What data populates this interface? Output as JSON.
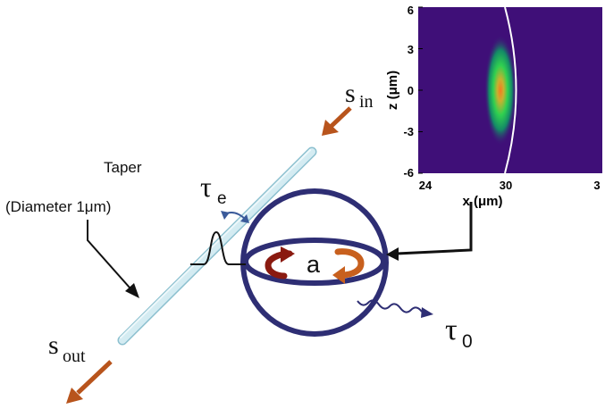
{
  "labels": {
    "s_in": {
      "main": "s",
      "sub": "in"
    },
    "s_out": {
      "main": "s",
      "sub": "out"
    },
    "tau_e": {
      "main": "τ",
      "sub": "e"
    },
    "tau_0": {
      "main": "τ",
      "sub": "0"
    },
    "mode": "a",
    "taper_line1": "Taper",
    "taper_line2": "(Diameter 1μm)"
  },
  "inset": {
    "z_label": "z (μm)",
    "x_label": "x (μm)",
    "z_ticks": [
      "6",
      "3",
      "0",
      "-3",
      "-6"
    ],
    "x_ticks": [
      "24",
      "30",
      "3"
    ]
  },
  "colors": {
    "sphere": "#2e2e74",
    "arrow_input": "#b8541c",
    "circulation_left": "#8a1a10",
    "circulation_right": "#c8601e",
    "taper_fill": "#d4ecf3",
    "taper_stroke": "#7fb8c8",
    "field_background": "#3f0f78"
  }
}
